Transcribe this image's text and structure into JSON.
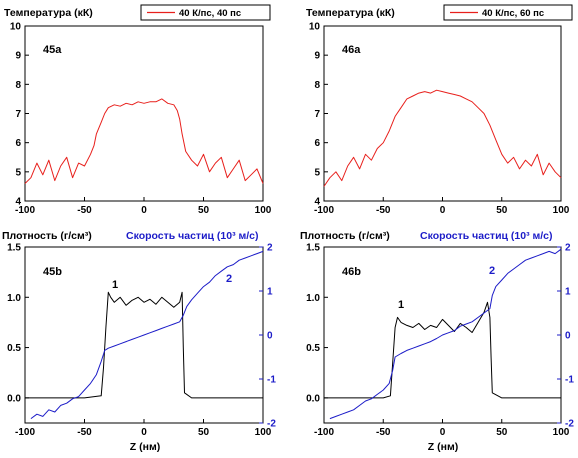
{
  "chart_data": [
    {
      "type": "line",
      "panel_label": "45a",
      "title": "Температура (кК)",
      "legend": "40 К/пс, 40 пс",
      "xlim": [
        -100,
        100
      ],
      "ylim": [
        4,
        10
      ],
      "xticks": [
        -100,
        -50,
        0,
        50,
        100
      ],
      "yticks": [
        4,
        5,
        6,
        7,
        8,
        9,
        10
      ],
      "series": [
        {
          "name": "40 К/пс, 40 пс",
          "color": "#e8201c",
          "x": [
            -100,
            -95,
            -90,
            -85,
            -80,
            -75,
            -70,
            -65,
            -60,
            -55,
            -50,
            -45,
            -42,
            -40,
            -36,
            -33,
            -30,
            -25,
            -20,
            -15,
            -10,
            -5,
            0,
            5,
            10,
            15,
            20,
            25,
            28,
            30,
            32,
            35,
            40,
            45,
            50,
            55,
            60,
            65,
            70,
            75,
            80,
            85,
            90,
            95,
            100
          ],
          "y": [
            4.6,
            4.8,
            5.3,
            4.9,
            5.4,
            4.7,
            5.2,
            5.5,
            4.8,
            5.3,
            5.2,
            5.6,
            5.9,
            6.3,
            6.7,
            7.0,
            7.2,
            7.3,
            7.25,
            7.35,
            7.3,
            7.4,
            7.35,
            7.4,
            7.4,
            7.5,
            7.35,
            7.3,
            7.1,
            6.8,
            6.3,
            5.7,
            5.4,
            5.2,
            5.6,
            5.0,
            5.3,
            5.5,
            4.8,
            5.1,
            5.4,
            4.7,
            4.9,
            5.1,
            4.6
          ]
        }
      ]
    },
    {
      "type": "line",
      "panel_label": "46a",
      "title": "Температура (кК)",
      "legend": "40 К/пс, 60 пс",
      "xlim": [
        -100,
        100
      ],
      "ylim": [
        4,
        10
      ],
      "xticks": [
        -100,
        -50,
        0,
        50,
        100
      ],
      "yticks": [
        4,
        5,
        6,
        7,
        8,
        9,
        10
      ],
      "series": [
        {
          "name": "40 К/пс, 60 пс",
          "color": "#e8201c",
          "x": [
            -100,
            -95,
            -90,
            -85,
            -80,
            -75,
            -70,
            -65,
            -60,
            -55,
            -50,
            -45,
            -40,
            -35,
            -30,
            -25,
            -20,
            -15,
            -10,
            -5,
            0,
            5,
            10,
            15,
            20,
            25,
            30,
            35,
            40,
            45,
            50,
            55,
            60,
            65,
            70,
            75,
            80,
            85,
            90,
            95,
            100
          ],
          "y": [
            4.5,
            4.8,
            5.0,
            4.7,
            5.2,
            5.5,
            5.1,
            5.6,
            5.4,
            5.8,
            6.0,
            6.4,
            6.9,
            7.2,
            7.5,
            7.6,
            7.7,
            7.75,
            7.7,
            7.8,
            7.75,
            7.7,
            7.65,
            7.6,
            7.5,
            7.4,
            7.2,
            7.0,
            6.6,
            6.1,
            5.6,
            5.3,
            5.5,
            5.1,
            5.4,
            5.2,
            5.6,
            4.9,
            5.3,
            5.0,
            4.8
          ]
        }
      ]
    },
    {
      "type": "line",
      "panel_label": "45b",
      "ylabel_left": "Плотность (г/см³)",
      "ylabel_right": "Скорость частиц (10³ м/с)",
      "xlabel": "Z (нм)",
      "xlim": [
        -100,
        100
      ],
      "ylim_left": [
        -0.25,
        1.5
      ],
      "ylim_right": [
        -2,
        2
      ],
      "xticks": [
        -100,
        -50,
        0,
        50,
        100
      ],
      "yticks_left": [
        0.0,
        0.5,
        1.0,
        1.5
      ],
      "yticks_right": [
        -2,
        -1,
        0,
        1,
        2
      ],
      "series": [
        {
          "name": "1",
          "axis": "left",
          "color": "#000000",
          "x": [
            -100,
            -50,
            -36,
            -34,
            -32,
            -30,
            -28,
            -25,
            -20,
            -15,
            -10,
            -5,
            0,
            5,
            10,
            15,
            20,
            25,
            30,
            32,
            33,
            34,
            40,
            50,
            100
          ],
          "y": [
            0.0,
            0.0,
            0.02,
            0.3,
            0.7,
            1.05,
            1.0,
            0.95,
            1.0,
            0.92,
            0.97,
            1.0,
            0.95,
            0.98,
            0.93,
            1.0,
            0.95,
            0.9,
            0.95,
            1.05,
            0.5,
            0.05,
            0.0,
            0.0,
            0.0
          ]
        },
        {
          "name": "2",
          "axis": "right",
          "color": "#1c1cc8",
          "x": [
            -95,
            -90,
            -85,
            -80,
            -75,
            -70,
            -65,
            -60,
            -55,
            -50,
            -45,
            -40,
            -36,
            -33,
            -30,
            -25,
            -20,
            -15,
            -10,
            -5,
            0,
            5,
            10,
            15,
            20,
            25,
            30,
            33,
            36,
            40,
            45,
            50,
            55,
            60,
            65,
            70,
            75,
            80,
            85,
            90,
            95,
            100
          ],
          "y": [
            -1.9,
            -1.8,
            -1.85,
            -1.7,
            -1.75,
            -1.6,
            -1.55,
            -1.45,
            -1.4,
            -1.25,
            -1.1,
            -0.9,
            -0.6,
            -0.35,
            -0.3,
            -0.25,
            -0.2,
            -0.15,
            -0.1,
            -0.05,
            0.0,
            0.05,
            0.1,
            0.15,
            0.2,
            0.25,
            0.3,
            0.45,
            0.65,
            0.8,
            0.95,
            1.1,
            1.2,
            1.35,
            1.45,
            1.55,
            1.6,
            1.7,
            1.75,
            1.8,
            1.85,
            1.9
          ]
        }
      ]
    },
    {
      "type": "line",
      "panel_label": "46b",
      "ylabel_left": "Плотность (г/см³)",
      "ylabel_right": "Скорость частиц (10³ м/с)",
      "xlabel": "Z (нм)",
      "xlim": [
        -100,
        100
      ],
      "ylim_left": [
        -0.25,
        1.5
      ],
      "ylim_right": [
        -2,
        2
      ],
      "xticks": [
        -100,
        -50,
        0,
        50,
        100
      ],
      "yticks_left": [
        0.0,
        0.5,
        1.0,
        1.5
      ],
      "yticks_right": [
        -2,
        -1,
        0,
        1,
        2
      ],
      "series": [
        {
          "name": "1",
          "axis": "left",
          "color": "#000000",
          "x": [
            -100,
            -50,
            -44,
            -42,
            -40,
            -38,
            -35,
            -30,
            -25,
            -20,
            -15,
            -10,
            -5,
            0,
            5,
            10,
            15,
            20,
            25,
            30,
            35,
            38,
            40,
            41,
            42,
            50,
            100
          ],
          "y": [
            0.0,
            0.0,
            0.02,
            0.35,
            0.7,
            0.8,
            0.75,
            0.72,
            0.7,
            0.74,
            0.68,
            0.72,
            0.7,
            0.78,
            0.72,
            0.66,
            0.74,
            0.7,
            0.65,
            0.75,
            0.85,
            0.95,
            0.8,
            0.4,
            0.05,
            0.0,
            0.0
          ]
        },
        {
          "name": "2",
          "axis": "right",
          "color": "#1c1cc8",
          "x": [
            -95,
            -90,
            -85,
            -80,
            -75,
            -70,
            -65,
            -60,
            -55,
            -50,
            -45,
            -42,
            -40,
            -35,
            -30,
            -25,
            -20,
            -15,
            -10,
            -5,
            0,
            5,
            10,
            15,
            20,
            25,
            30,
            35,
            40,
            42,
            45,
            50,
            55,
            60,
            65,
            70,
            75,
            80,
            85,
            90,
            95,
            100
          ],
          "y": [
            -1.9,
            -1.85,
            -1.8,
            -1.75,
            -1.7,
            -1.6,
            -1.5,
            -1.45,
            -1.35,
            -1.25,
            -1.1,
            -0.8,
            -0.5,
            -0.42,
            -0.35,
            -0.3,
            -0.25,
            -0.2,
            -0.15,
            -0.08,
            0.0,
            0.05,
            0.1,
            0.2,
            0.25,
            0.3,
            0.4,
            0.5,
            0.6,
            0.9,
            1.1,
            1.25,
            1.4,
            1.5,
            1.6,
            1.7,
            1.75,
            1.8,
            1.85,
            1.9,
            1.85,
            1.95
          ]
        }
      ]
    }
  ]
}
